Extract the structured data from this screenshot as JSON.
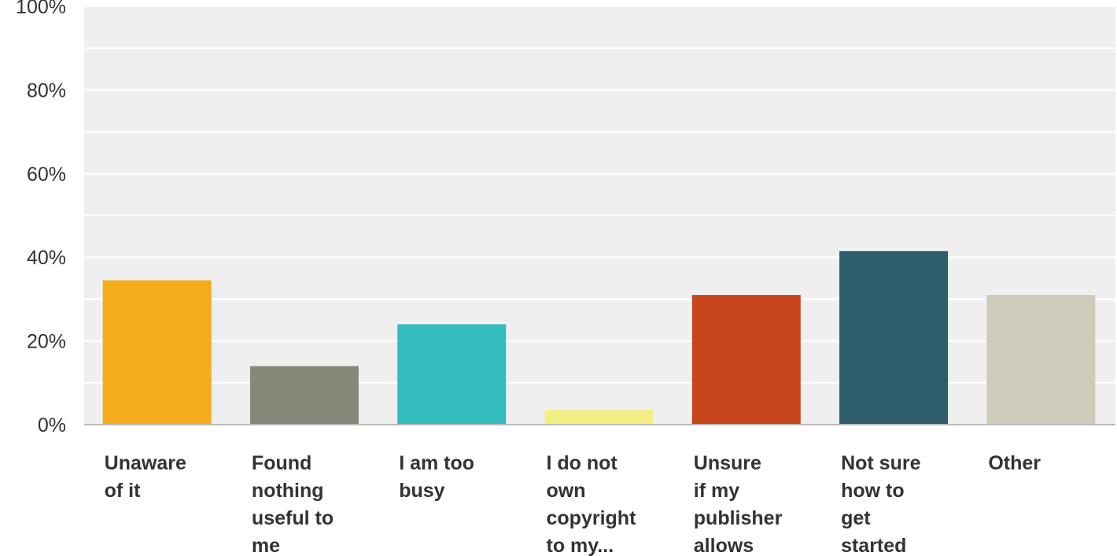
{
  "chart_data": {
    "type": "bar",
    "title": "",
    "xlabel": "",
    "ylabel": "",
    "ylim": [
      0,
      100
    ],
    "y_ticks": [
      "0%",
      "20%",
      "40%",
      "60%",
      "80%",
      "100%"
    ],
    "grid": true,
    "categories": [
      "Unaware of it",
      "Found nothing useful to me",
      "I am too busy",
      "I do not own copyright to my...",
      "Unsure if my publisher allows",
      "Not sure how to get started",
      "Other"
    ],
    "category_label_lines": [
      [
        "Unaware",
        "of it"
      ],
      [
        "Found",
        "nothing",
        "useful to",
        "me"
      ],
      [
        "I am too",
        "busy"
      ],
      [
        "I do not",
        "own",
        "copyright",
        "to my..."
      ],
      [
        "Unsure",
        "if my",
        "publisher",
        "allows"
      ],
      [
        "Not sure",
        "how to",
        "get",
        "started"
      ],
      [
        "Other"
      ]
    ],
    "values": [
      34.5,
      14,
      24,
      3.5,
      31,
      41.5,
      31
    ],
    "colors": [
      "#f4ab1c",
      "#88887a",
      "#33bdbf",
      "#f4ef84",
      "#c9451b",
      "#2e5d6c",
      "#cecbbb"
    ],
    "plot_background": "#efefef",
    "grid_color": "#ffffff"
  }
}
